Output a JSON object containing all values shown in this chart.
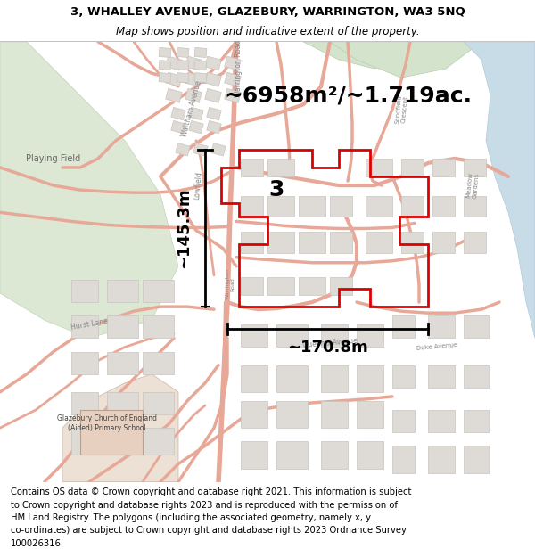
{
  "title_line1": "3, WHALLEY AVENUE, GLAZEBURY, WARRINGTON, WA3 5NQ",
  "title_line2": "Map shows position and indicative extent of the property.",
  "footer_lines": [
    "Contains OS data © Crown copyright and database right 2021. This information is subject",
    "to Crown copyright and database rights 2023 and is reproduced with the permission of",
    "HM Land Registry. The polygons (including the associated geometry, namely x, y",
    "co-ordinates) are subject to Crown copyright and database rights 2023 Ordnance Survey",
    "100026316."
  ],
  "area_label": "~6958m²/~1.719ac.",
  "plot_number": "3",
  "dim_height": "~145.3m",
  "dim_width": "~170.8m",
  "map_bg": "#f8f5f2",
  "road_color": "#e8a898",
  "road_fill": "#f8f5f2",
  "block_color": "#dedbd6",
  "block_outline": "#c8c4be",
  "property_fill": "none",
  "property_outline": "#dd0000",
  "green_area1": "#dce8d4",
  "green_area2": "#d4e4cc",
  "blue_water": "#c8dce8",
  "title_fontsize": 9.5,
  "subtitle_fontsize": 8.5,
  "footer_fontsize": 7.2,
  "area_fontsize": 18,
  "plot_num_fontsize": 18,
  "dim_fontsize": 13
}
